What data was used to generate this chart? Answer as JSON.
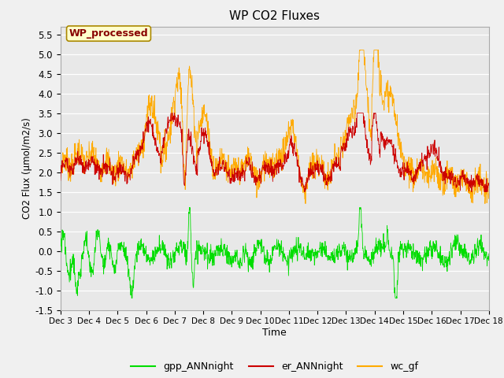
{
  "title": "WP CO2 Fluxes",
  "xlabel": "Time",
  "ylabel": "CO2 Flux (μmol/m2/s)",
  "ylim": [
    -1.5,
    5.7
  ],
  "yticks": [
    -1.5,
    -1.0,
    -0.5,
    0.0,
    0.5,
    1.0,
    1.5,
    2.0,
    2.5,
    3.0,
    3.5,
    4.0,
    4.5,
    5.0,
    5.5
  ],
  "color_gpp": "#00dd00",
  "color_er": "#cc0000",
  "color_wc": "#ffaa00",
  "legend_label_gpp": "gpp_ANNnight",
  "legend_label_er": "er_ANNnight",
  "legend_label_wc": "wc_gf",
  "annotation_text": "WP_processed",
  "annotation_bg": "#ffffcc",
  "annotation_border": "#aa8800",
  "annotation_text_color": "#880000",
  "n_points": 1440,
  "start_day": 3,
  "end_day": 18,
  "plot_bg": "#e8e8e8",
  "fig_bg": "#f0f0f0",
  "grid_color": "#ffffff",
  "linewidth": 0.6
}
